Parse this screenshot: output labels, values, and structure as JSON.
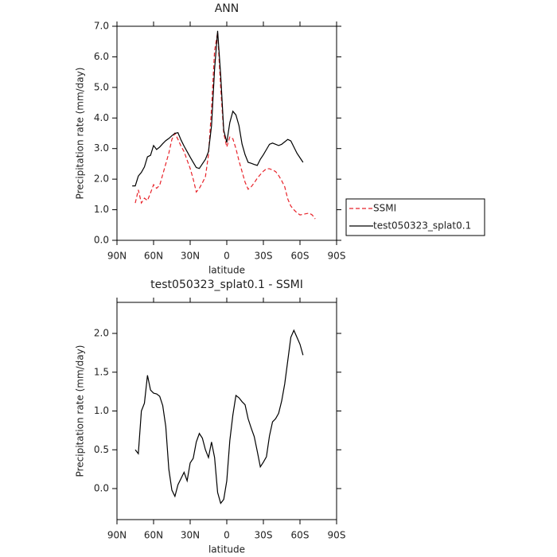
{
  "chart_data": [
    {
      "type": "line",
      "title": "ANN",
      "xlabel": "latitude",
      "ylabel": "Precipitation rate (mm/day)",
      "x": [
        77.5,
        75,
        72.5,
        70,
        67.5,
        65,
        62.5,
        60,
        57.5,
        55,
        52.5,
        50,
        47.5,
        45,
        42.5,
        40,
        37.5,
        35,
        32.5,
        30,
        27.5,
        25,
        22.5,
        20,
        17.5,
        15,
        12.5,
        10,
        7.5,
        5,
        2.5,
        0,
        -2.5,
        -5,
        -7.5,
        -10,
        -12.5,
        -15,
        -17.5,
        -20,
        -22.5,
        -25,
        -27.5,
        -30,
        -32.5,
        -35,
        -37.5,
        -40,
        -42.5,
        -45,
        -47.5,
        -50,
        -52.5,
        -55,
        -57.5,
        -60,
        -62.5,
        -65,
        -67.5,
        -70,
        -72.5,
        -75
      ],
      "series": [
        {
          "name": "SSMI",
          "color": "#e8232a",
          "line_style": "dashed",
          "values": [
            null,
            1.22,
            1.65,
            1.22,
            1.38,
            1.3,
            1.55,
            1.82,
            1.7,
            1.8,
            2.15,
            2.5,
            2.85,
            3.3,
            3.5,
            3.3,
            3.08,
            2.9,
            2.62,
            2.35,
            2.0,
            1.58,
            1.7,
            1.88,
            2.08,
            2.8,
            4.3,
            6.2,
            6.8,
            5.0,
            3.5,
            3.05,
            3.38,
            3.32,
            3.0,
            2.6,
            2.25,
            1.9,
            1.67,
            1.75,
            1.88,
            2.03,
            2.15,
            2.26,
            2.34,
            2.34,
            2.3,
            2.25,
            2.12,
            1.95,
            1.75,
            1.35,
            1.12,
            1.0,
            0.9,
            0.83,
            0.85,
            0.87,
            0.89,
            0.83,
            0.7,
            null
          ]
        },
        {
          "name": "test050323_splat0.1",
          "color": "#000000",
          "line_style": "solid",
          "values": [
            1.78,
            1.78,
            2.1,
            2.22,
            2.4,
            2.73,
            2.78,
            3.1,
            2.97,
            3.05,
            3.16,
            3.26,
            3.33,
            3.42,
            3.5,
            3.52,
            3.28,
            3.08,
            2.9,
            2.72,
            2.55,
            2.38,
            2.35,
            2.5,
            2.65,
            2.9,
            3.75,
            5.6,
            6.85,
            5.4,
            3.6,
            3.2,
            3.85,
            4.22,
            4.1,
            3.75,
            3.15,
            2.8,
            2.55,
            2.52,
            2.48,
            2.45,
            2.65,
            2.8,
            2.97,
            3.14,
            3.18,
            3.14,
            3.1,
            3.14,
            3.22,
            3.3,
            3.25,
            3.05,
            2.85,
            2.7,
            2.55,
            null,
            null,
            null,
            null,
            null
          ]
        }
      ],
      "xlim": [
        90,
        -90
      ],
      "xticks": [
        {
          "value": 90,
          "label": "90N"
        },
        {
          "value": 60,
          "label": "60N"
        },
        {
          "value": 30,
          "label": "30N"
        },
        0,
        {
          "value": -30,
          "label": "30S"
        },
        {
          "value": -60,
          "label": "60S"
        },
        {
          "value": -90,
          "label": "90S"
        }
      ],
      "ylim": [
        0,
        7
      ],
      "yticks": [
        {
          "value": 0,
          "label": "0.0"
        },
        {
          "value": 1,
          "label": "1.0"
        },
        {
          "value": 2,
          "label": "2.0"
        },
        {
          "value": 3,
          "label": "3.0"
        },
        {
          "value": 4,
          "label": "4.0"
        },
        {
          "value": 5,
          "label": "5.0"
        },
        {
          "value": 6,
          "label": "6.0"
        },
        {
          "value": 7,
          "label": "7.0"
        }
      ],
      "legend": "outside-right",
      "grid": false
    },
    {
      "type": "line",
      "title": "test050323_splat0.1 - SSMI",
      "xlabel": "latitude",
      "ylabel": "Precipitation rate (mm/day)",
      "x": [
        77.5,
        75,
        72.5,
        70,
        67.5,
        65,
        62.5,
        60,
        57.5,
        55,
        52.5,
        50,
        47.5,
        45,
        42.5,
        40,
        37.5,
        35,
        32.5,
        30,
        27.5,
        25,
        22.5,
        20,
        17.5,
        15,
        12.5,
        10,
        7.5,
        5,
        2.5,
        0,
        -2.5,
        -5,
        -7.5,
        -10,
        -12.5,
        -15,
        -17.5,
        -20,
        -22.5,
        -25,
        -27.5,
        -30,
        -32.5,
        -35,
        -37.5,
        -40,
        -42.5,
        -45,
        -47.5,
        -50,
        -52.5,
        -55,
        -57.5,
        -60,
        -62.5,
        -65,
        -67.5,
        -70,
        -72.5,
        -75
      ],
      "color": "#000000",
      "values": [
        null,
        0.5,
        0.45,
        1.0,
        1.1,
        1.46,
        1.27,
        1.23,
        1.22,
        1.19,
        1.07,
        0.8,
        0.25,
        -0.02,
        -0.1,
        0.05,
        0.13,
        0.21,
        0.1,
        0.33,
        0.39,
        0.6,
        0.71,
        0.65,
        0.5,
        0.4,
        0.6,
        0.4,
        -0.05,
        -0.19,
        -0.14,
        0.1,
        0.62,
        0.95,
        1.2,
        1.17,
        1.12,
        1.08,
        0.9,
        0.78,
        0.67,
        0.48,
        0.28,
        0.34,
        0.41,
        0.68,
        0.86,
        0.9,
        0.97,
        1.13,
        1.35,
        1.65,
        1.95,
        2.04,
        1.95,
        1.86,
        1.72,
        null,
        null,
        null,
        null,
        null
      ],
      "xlim": [
        90,
        -90
      ],
      "xticks": [
        {
          "value": 90,
          "label": "90N"
        },
        {
          "value": 60,
          "label": "60N"
        },
        {
          "value": 30,
          "label": "30N"
        },
        0,
        {
          "value": -30,
          "label": "30S"
        },
        {
          "value": -60,
          "label": "60S"
        },
        {
          "value": -90,
          "label": "90S"
        }
      ],
      "ylim": [
        -0.4,
        2.4
      ],
      "yticks": [
        {
          "value": 0,
          "label": "0.0"
        },
        {
          "value": 0.5,
          "label": "0.5"
        },
        {
          "value": 1,
          "label": "1.0"
        },
        {
          "value": 1.5,
          "label": "1.5"
        },
        {
          "value": 2,
          "label": "2.0"
        }
      ],
      "grid": false
    }
  ]
}
